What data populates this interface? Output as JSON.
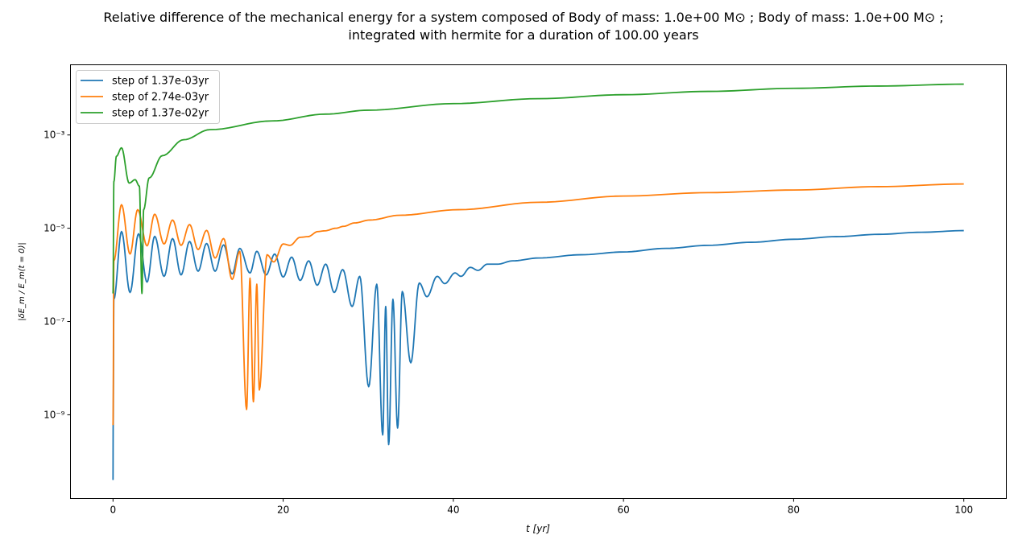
{
  "chart_data": {
    "type": "line",
    "title": [
      "Relative difference of the mechanical energy for a system composed of Body of mass: 1.0e+00 M⊙ ; Body of mass: 1.0e+00 M⊙ ;",
      "integrated with hermite for a duration of 100.00 years"
    ],
    "xlabel": "t [yr]",
    "ylabel": "|δE_m / E_m(t = 0)|",
    "xscale": "linear",
    "yscale": "log",
    "xlim": [
      -5,
      105
    ],
    "ylim": [
      1.6e-11,
      0.032
    ],
    "xticks": [
      0,
      20,
      40,
      60,
      80,
      100
    ],
    "xtick_labels": [
      "0",
      "20",
      "40",
      "60",
      "80",
      "100"
    ],
    "yticks": [
      1e-09,
      1e-07,
      1e-05,
      0.001
    ],
    "ytick_labels": [
      "10⁻⁹",
      "10⁻⁷",
      "10⁻⁵",
      "10⁻³"
    ],
    "grid": false,
    "legend_position": "top-left",
    "series": [
      {
        "name": "step of 1.37e-03yr",
        "color": "#1f77b4",
        "points": [
          [
            0,
            4e-11
          ],
          [
            0.02,
            6e-10
          ],
          [
            0.1,
            3e-07
          ],
          [
            1,
            8.5e-06
          ],
          [
            2,
            4.2e-07
          ],
          [
            3,
            7.6e-06
          ],
          [
            4,
            7e-07
          ],
          [
            4.9,
            6.7e-06
          ],
          [
            6,
            9.3e-07
          ],
          [
            7,
            6e-06
          ],
          [
            8,
            1e-06
          ],
          [
            9,
            5.2e-06
          ],
          [
            10,
            1.2e-06
          ],
          [
            11,
            4.7e-06
          ],
          [
            12,
            1.2e-06
          ],
          [
            13,
            4.4e-06
          ],
          [
            14,
            1.05e-06
          ],
          [
            14.9,
            3.7e-06
          ],
          [
            16.1,
            1.1e-06
          ],
          [
            16.9,
            3.2e-06
          ],
          [
            18,
            1e-06
          ],
          [
            19,
            2.8e-06
          ],
          [
            20,
            9e-07
          ],
          [
            21,
            2.4e-06
          ],
          [
            22,
            7.6e-07
          ],
          [
            23,
            2e-06
          ],
          [
            24,
            6e-07
          ],
          [
            25,
            1.7e-06
          ],
          [
            26,
            4.2e-07
          ],
          [
            27,
            1.3e-06
          ],
          [
            28.1,
            2.1e-07
          ],
          [
            29,
            9.3e-07
          ],
          [
            30.05,
            4e-09
          ],
          [
            31,
            6.3e-07
          ],
          [
            31.7,
            3.7e-10
          ],
          [
            32.05,
            2.1e-07
          ],
          [
            32.4,
            2.3e-10
          ],
          [
            32.9,
            3e-07
          ],
          [
            33.45,
            5.2e-10
          ],
          [
            34,
            4.4e-07
          ],
          [
            35,
            1.3e-08
          ],
          [
            36,
            6.7e-07
          ],
          [
            36.9,
            3.4e-07
          ],
          [
            38.1,
            9.3e-07
          ],
          [
            39,
            6.5e-07
          ],
          [
            40.2,
            1.1e-06
          ],
          [
            40.9,
            9.3e-07
          ],
          [
            42,
            1.45e-06
          ],
          [
            42.9,
            1.25e-06
          ],
          [
            44,
            1.7e-06
          ],
          [
            45.2,
            1.7e-06
          ],
          [
            47,
            2e-06
          ],
          [
            50,
            2.3e-06
          ],
          [
            55,
            2.7e-06
          ],
          [
            60,
            3.1e-06
          ],
          [
            65,
            3.7e-06
          ],
          [
            70,
            4.3e-06
          ],
          [
            75,
            5e-06
          ],
          [
            80,
            5.8e-06
          ],
          [
            85,
            6.6e-06
          ],
          [
            90,
            7.4e-06
          ],
          [
            95,
            8.2e-06
          ],
          [
            100,
            8.9e-06
          ]
        ]
      },
      {
        "name": "step of 2.74e-03yr",
        "color": "#ff7f0e",
        "points": [
          [
            0,
            6e-10
          ],
          [
            0.1,
            2e-06
          ],
          [
            1,
            3.2e-05
          ],
          [
            2,
            2.8e-06
          ],
          [
            2.9,
            2.5e-05
          ],
          [
            4,
            4.2e-06
          ],
          [
            4.9,
            2e-05
          ],
          [
            6,
            4.6e-06
          ],
          [
            7,
            1.5e-05
          ],
          [
            8,
            4.3e-06
          ],
          [
            9,
            1.2e-05
          ],
          [
            10,
            3.5e-06
          ],
          [
            11,
            9e-06
          ],
          [
            12,
            2.3e-06
          ],
          [
            13,
            6e-06
          ],
          [
            14,
            8e-07
          ],
          [
            14.9,
            3.2e-06
          ],
          [
            15.7,
            1.3e-09
          ],
          [
            16.1,
            8.5e-07
          ],
          [
            16.5,
            1.9e-09
          ],
          [
            16.9,
            6.3e-07
          ],
          [
            17.2,
            3.4e-09
          ],
          [
            18.1,
            2.7e-06
          ],
          [
            18.9,
            1.9e-06
          ],
          [
            20,
            4.6e-06
          ],
          [
            20.8,
            4.3e-06
          ],
          [
            22,
            6.4e-06
          ],
          [
            22.9,
            6.6e-06
          ],
          [
            24.1,
            8.5e-06
          ],
          [
            24.9,
            8.8e-06
          ],
          [
            26.2,
            1e-05
          ],
          [
            27.1,
            1.1e-05
          ],
          [
            28.4,
            1.3e-05
          ],
          [
            30.2,
            1.5e-05
          ],
          [
            33.7,
            1.9e-05
          ],
          [
            40.6,
            2.5e-05
          ],
          [
            50,
            3.6e-05
          ],
          [
            60,
            4.9e-05
          ],
          [
            70,
            5.8e-05
          ],
          [
            80,
            6.6e-05
          ],
          [
            90,
            7.8e-05
          ],
          [
            100,
            8.9e-05
          ]
        ]
      },
      {
        "name": "step of 1.37e-02yr",
        "color": "#2ca02c",
        "points": [
          [
            0,
            4e-07
          ],
          [
            0.1,
            0.0001
          ],
          [
            0.4,
            0.00035
          ],
          [
            1,
            0.00053
          ],
          [
            1.9,
            9.3e-05
          ],
          [
            2.6,
            0.00011
          ],
          [
            3.1,
            8e-05
          ],
          [
            3.4,
            4e-07
          ],
          [
            3.6,
            2.5e-05
          ],
          [
            4.25,
            0.00012
          ],
          [
            5.8,
            0.00036
          ],
          [
            8.3,
            0.00079
          ],
          [
            11.4,
            0.0013
          ],
          [
            18.7,
            0.002
          ],
          [
            25,
            0.0028
          ],
          [
            30,
            0.0034
          ],
          [
            40,
            0.0047
          ],
          [
            50,
            0.006
          ],
          [
            60,
            0.0073
          ],
          [
            70,
            0.0086
          ],
          [
            80,
            0.01
          ],
          [
            90,
            0.0112
          ],
          [
            100,
            0.0123
          ]
        ]
      }
    ]
  }
}
